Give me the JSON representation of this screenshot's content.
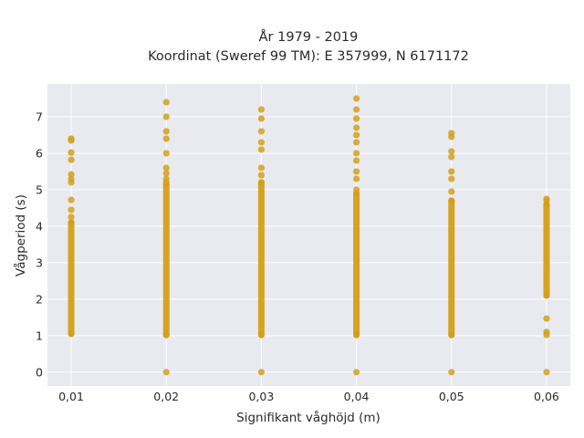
{
  "chart_data": {
    "type": "scatter",
    "title": "År 1979 - 2019",
    "subtitle": "Koordinat (Sweref 99 TM): E 357999, N 6171172",
    "xlabel": "Signifikant våghöjd (m)",
    "ylabel": "Vågperiod (s)",
    "x_ticks": [
      "0,01",
      "0,02",
      "0,03",
      "0,04",
      "0,05",
      "0,06"
    ],
    "x_tick_values": [
      0.01,
      0.02,
      0.03,
      0.04,
      0.05,
      0.06
    ],
    "y_ticks": [
      "0",
      "1",
      "2",
      "3",
      "4",
      "5",
      "6",
      "7"
    ],
    "y_tick_values": [
      0,
      1,
      2,
      3,
      4,
      5,
      6,
      7
    ],
    "xlim": [
      0.0075,
      0.0625
    ],
    "ylim": [
      -0.38,
      7.9
    ],
    "grid": true,
    "marker_color": "#D4A017",
    "plot_background": "#E9E9F0",
    "series": [
      {
        "points": [
          [
            0.01,
            1.05
          ],
          [
            0.01,
            4.1
          ],
          [
            0.01,
            4.25
          ],
          [
            0.01,
            4.45
          ],
          [
            0.01,
            4.72
          ],
          [
            0.01,
            5.2
          ],
          [
            0.01,
            5.3
          ],
          [
            0.01,
            5.42
          ],
          [
            0.01,
            5.82
          ],
          [
            0.01,
            6.02
          ],
          [
            0.01,
            6.35
          ],
          [
            0.01,
            6.4
          ],
          [
            0.02,
            0.0
          ],
          [
            0.02,
            1.02
          ],
          [
            0.02,
            5.15
          ],
          [
            0.02,
            5.2
          ],
          [
            0.02,
            5.3
          ],
          [
            0.02,
            5.45
          ],
          [
            0.02,
            5.6
          ],
          [
            0.02,
            6.0
          ],
          [
            0.02,
            6.4
          ],
          [
            0.02,
            6.6
          ],
          [
            0.02,
            7.0
          ],
          [
            0.02,
            7.4
          ],
          [
            0.03,
            0.0
          ],
          [
            0.03,
            1.02
          ],
          [
            0.03,
            5.2
          ],
          [
            0.03,
            5.4
          ],
          [
            0.03,
            5.6
          ],
          [
            0.03,
            6.1
          ],
          [
            0.03,
            6.3
          ],
          [
            0.03,
            6.6
          ],
          [
            0.03,
            6.95
          ],
          [
            0.03,
            7.2
          ],
          [
            0.04,
            0.0
          ],
          [
            0.04,
            1.02
          ],
          [
            0.04,
            4.9
          ],
          [
            0.04,
            5.0
          ],
          [
            0.04,
            5.3
          ],
          [
            0.04,
            5.5
          ],
          [
            0.04,
            5.8
          ],
          [
            0.04,
            6.0
          ],
          [
            0.04,
            6.3
          ],
          [
            0.04,
            6.5
          ],
          [
            0.04,
            6.7
          ],
          [
            0.04,
            6.95
          ],
          [
            0.04,
            7.2
          ],
          [
            0.04,
            7.5
          ],
          [
            0.05,
            0.0
          ],
          [
            0.05,
            1.02
          ],
          [
            0.05,
            4.7
          ],
          [
            0.05,
            4.95
          ],
          [
            0.05,
            5.3
          ],
          [
            0.05,
            5.5
          ],
          [
            0.05,
            5.9
          ],
          [
            0.05,
            6.05
          ],
          [
            0.05,
            6.45
          ],
          [
            0.05,
            6.55
          ],
          [
            0.06,
            0.0
          ],
          [
            0.06,
            1.02
          ],
          [
            0.06,
            1.1
          ],
          [
            0.06,
            1.47
          ],
          [
            0.06,
            2.1
          ],
          [
            0.06,
            4.6
          ],
          [
            0.06,
            4.7
          ],
          [
            0.06,
            4.75
          ]
        ],
        "ranges": [
          [
            0.01,
            1.05,
            4.1
          ],
          [
            0.02,
            1.02,
            5.15
          ],
          [
            0.03,
            1.02,
            5.2
          ],
          [
            0.04,
            1.02,
            4.9
          ],
          [
            0.05,
            1.02,
            4.7
          ],
          [
            0.06,
            2.1,
            4.6
          ]
        ]
      }
    ]
  }
}
